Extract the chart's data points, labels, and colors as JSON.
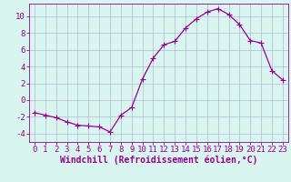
{
  "x": [
    0,
    1,
    2,
    3,
    4,
    5,
    6,
    7,
    8,
    9,
    10,
    11,
    12,
    13,
    14,
    15,
    16,
    17,
    18,
    19,
    20,
    21,
    22,
    23
  ],
  "y": [
    -1.5,
    -1.8,
    -2.1,
    -2.6,
    -3.0,
    -3.1,
    -3.2,
    -3.8,
    -1.8,
    -0.9,
    2.5,
    5.0,
    6.6,
    7.0,
    8.6,
    9.7,
    10.5,
    10.9,
    10.2,
    9.0,
    7.1,
    6.8,
    3.5,
    2.4
  ],
  "line_color": "#990099",
  "marker": "D",
  "marker_size": 2.2,
  "background_color": "#d8f5f0",
  "grid_color": "#aaaacc",
  "xlabel": "Windchill (Refroidissement éolien,°C)",
  "ylabel": "",
  "xlim": [
    -0.5,
    23.5
  ],
  "ylim": [
    -5,
    11.5
  ],
  "yticks": [
    -4,
    -2,
    0,
    2,
    4,
    6,
    8,
    10
  ],
  "xticks": [
    0,
    1,
    2,
    3,
    4,
    5,
    6,
    7,
    8,
    9,
    10,
    11,
    12,
    13,
    14,
    15,
    16,
    17,
    18,
    19,
    20,
    21,
    22,
    23
  ],
  "xlabel_fontsize": 7,
  "tick_fontsize": 6.5,
  "tick_color": "#990099",
  "axis_color": "#990099",
  "linewidth": 0.9
}
